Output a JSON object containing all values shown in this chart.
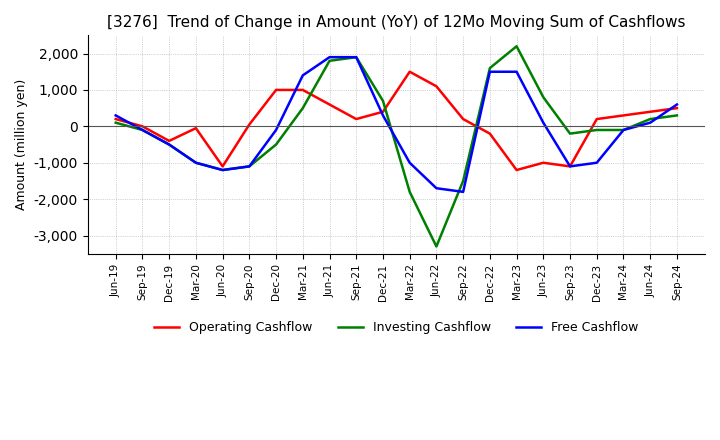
{
  "title": "[3276]  Trend of Change in Amount (YoY) of 12Mo Moving Sum of Cashflows",
  "ylabel": "Amount (million yen)",
  "x_labels": [
    "Jun-19",
    "Sep-19",
    "Dec-19",
    "Mar-20",
    "Jun-20",
    "Sep-20",
    "Dec-20",
    "Mar-21",
    "Jun-21",
    "Sep-21",
    "Dec-21",
    "Mar-22",
    "Jun-22",
    "Sep-22",
    "Dec-22",
    "Mar-23",
    "Jun-23",
    "Sep-23",
    "Dec-23",
    "Mar-24",
    "Jun-24",
    "Sep-24"
  ],
  "operating_cashflow": [
    200,
    0,
    -400,
    -50,
    -1100,
    50,
    1000,
    1000,
    600,
    200,
    400,
    1500,
    1100,
    200,
    -200,
    -1200,
    -1000,
    -1100,
    200,
    300,
    400,
    500
  ],
  "investing_cashflow": [
    100,
    -100,
    -500,
    -1000,
    -1200,
    -1100,
    -500,
    500,
    1800,
    1900,
    700,
    -1800,
    -3300,
    -1500,
    1600,
    2200,
    800,
    -200,
    -100,
    -100,
    200,
    300
  ],
  "free_cashflow": [
    300,
    -100,
    -500,
    -1000,
    -1200,
    -1100,
    -100,
    1400,
    1900,
    1900,
    300,
    -1000,
    -1700,
    -1800,
    1500,
    1500,
    100,
    -1100,
    -1000,
    -100,
    100,
    600
  ],
  "operating_color": "#ff0000",
  "investing_color": "#008000",
  "free_color": "#0000ff",
  "ylim": [
    -3500,
    2500
  ],
  "yticks": [
    -3000,
    -2000,
    -1000,
    0,
    1000,
    2000
  ],
  "background_color": "#ffffff",
  "grid_color": "#aaaaaa",
  "title_fontsize": 11,
  "legend_labels": [
    "Operating Cashflow",
    "Investing Cashflow",
    "Free Cashflow"
  ]
}
